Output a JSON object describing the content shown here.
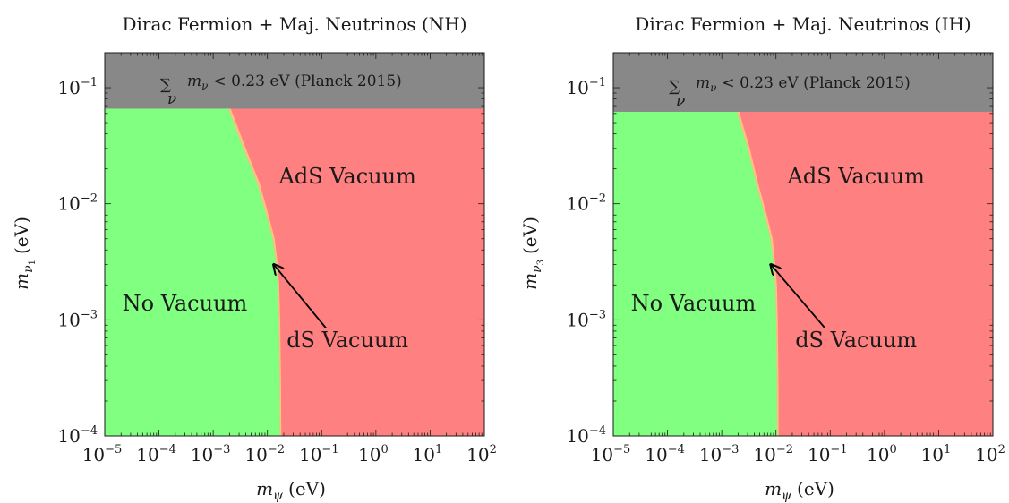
{
  "chart_data": [
    {
      "type": "area",
      "title": "Dirac Fermion + Maj. Neutrinos (NH)",
      "xlabel": "m_ψ (eV)",
      "ylabel": "m_ν1 (eV)",
      "xlabel_main": "m",
      "xlabel_sub": "ψ",
      "xlabel_unit": "(eV)",
      "ylabel_main": "m",
      "ylabel_sub": "ν",
      "ylabel_subsub": "1",
      "ylabel_unit": "(eV)",
      "xscale": "log",
      "yscale": "log",
      "xlim": [
        1e-05,
        100
      ],
      "ylim": [
        0.0001,
        0.2
      ],
      "x_ticks": [
        1e-05,
        0.0001,
        0.001,
        0.01,
        0.1,
        1,
        10,
        100
      ],
      "x_tick_labels": [
        "10",
        "10",
        "10",
        "10",
        "10",
        "10",
        "10",
        "10"
      ],
      "x_tick_exps": [
        "−5",
        "−4",
        "−3",
        "−2",
        "−1",
        "0",
        "1",
        "2"
      ],
      "y_ticks": [
        0.0001,
        0.001,
        0.01,
        0.1
      ],
      "y_tick_labels": [
        "10",
        "10",
        "10",
        "10"
      ],
      "y_tick_exps": [
        "−4",
        "−3",
        "−2",
        "−1"
      ],
      "planck_band": {
        "y_min": 0.066,
        "label_sum": "∑",
        "label_sum_index": "ν",
        "label_m": "m",
        "label_m_sub": "ν",
        "label_text": "< 0.23 eV (Planck 2015)",
        "color": "#888888"
      },
      "boundary": {
        "y": [
          0.0001,
          0.0003,
          0.001,
          0.002,
          0.003,
          0.005,
          0.008,
          0.015,
          0.03,
          0.066
        ],
        "x_no_vacuum": [
          0.017,
          0.0168,
          0.0162,
          0.0155,
          0.0145,
          0.0125,
          0.0095,
          0.0065,
          0.0036,
          0.0019
        ],
        "x_ds_vacuum": [
          0.018,
          0.0178,
          0.0172,
          0.0165,
          0.0155,
          0.0136,
          0.0105,
          0.0072,
          0.004,
          0.0021
        ]
      },
      "regions": [
        {
          "label": "No Vacuum",
          "color": "#80ff80"
        },
        {
          "label": "dS Vacuum",
          "color": "#ffc080"
        },
        {
          "label": "AdS Vacuum",
          "color": "#ff8080"
        }
      ],
      "region_label_positions": {
        "no_vacuum": [
          0.0003,
          0.0012
        ],
        "ads_vacuum": [
          0.3,
          0.015
        ],
        "ds_vacuum": [
          0.3,
          0.00058
        ]
      },
      "arrow": {
        "from": [
          0.12,
          0.00085
        ],
        "to": [
          0.013,
          0.003
        ],
        "label": "dS Vacuum"
      }
    },
    {
      "type": "area",
      "title": "Dirac Fermion + Maj. Neutrinos (IH)",
      "xlabel": "m_ψ (eV)",
      "ylabel": "m_ν3 (eV)",
      "xlabel_main": "m",
      "xlabel_sub": "ψ",
      "xlabel_unit": "(eV)",
      "ylabel_main": "m",
      "ylabel_sub": "ν",
      "ylabel_subsub": "3",
      "ylabel_unit": "(eV)",
      "xscale": "log",
      "yscale": "log",
      "xlim": [
        1e-05,
        100
      ],
      "ylim": [
        0.0001,
        0.2
      ],
      "x_ticks": [
        1e-05,
        0.0001,
        0.001,
        0.01,
        0.1,
        1,
        10,
        100
      ],
      "x_tick_labels": [
        "10",
        "10",
        "10",
        "10",
        "10",
        "10",
        "10",
        "10"
      ],
      "x_tick_exps": [
        "−5",
        "−4",
        "−3",
        "−2",
        "−1",
        "0",
        "1",
        "2"
      ],
      "y_ticks": [
        0.0001,
        0.001,
        0.01,
        0.1
      ],
      "y_tick_labels": [
        "10",
        "10",
        "10",
        "10"
      ],
      "y_tick_exps": [
        "−4",
        "−3",
        "−2",
        "−1"
      ],
      "planck_band": {
        "y_min": 0.062,
        "label_sum": "∑",
        "label_sum_index": "ν",
        "label_m": "m",
        "label_m_sub": "ν",
        "label_text": "< 0.23 eV (Planck 2015)",
        "color": "#888888"
      },
      "boundary": {
        "y": [
          0.0001,
          0.0003,
          0.001,
          0.002,
          0.003,
          0.005,
          0.008,
          0.015,
          0.03,
          0.062
        ],
        "x_no_vacuum": [
          0.0105,
          0.0104,
          0.0101,
          0.0097,
          0.009,
          0.0079,
          0.0062,
          0.0043,
          0.003,
          0.0019
        ],
        "x_ds_vacuum": [
          0.0112,
          0.0111,
          0.0108,
          0.0104,
          0.0097,
          0.0087,
          0.0068,
          0.0047,
          0.0033,
          0.0021
        ]
      },
      "regions": [
        {
          "label": "No Vacuum",
          "color": "#80ff80"
        },
        {
          "label": "dS Vacuum",
          "color": "#ffc080"
        },
        {
          "label": "AdS Vacuum",
          "color": "#ff8080"
        }
      ],
      "region_label_positions": {
        "no_vacuum": [
          0.0003,
          0.0012
        ],
        "ads_vacuum": [
          0.3,
          0.015
        ],
        "ds_vacuum": [
          0.3,
          0.00058
        ]
      },
      "arrow": {
        "from": [
          0.08,
          0.00085
        ],
        "to": [
          0.008,
          0.003
        ],
        "label": "dS Vacuum"
      }
    }
  ]
}
